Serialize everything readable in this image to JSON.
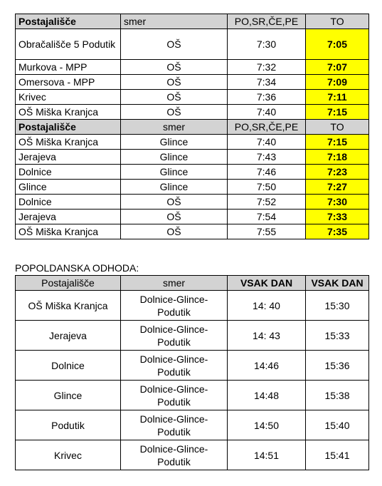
{
  "morning": {
    "header1": {
      "station": "Postajališče",
      "direction": "smer",
      "weekdays": "PO,SR,ČE,PE",
      "tuesday": "TO"
    },
    "block1": [
      {
        "station": "Obračališče 5 Podutik",
        "direction": "OŠ",
        "weekdays": "7:30",
        "tuesday": "7:05"
      },
      {
        "station": "Murkova - MPP",
        "direction": "OŠ",
        "weekdays": "7:32",
        "tuesday": "7:07"
      },
      {
        "station": "Omersova - MPP",
        "direction": "OŠ",
        "weekdays": "7:34",
        "tuesday": "7:09"
      },
      {
        "station": "Krivec",
        "direction": "OŠ",
        "weekdays": "7:36",
        "tuesday": "7:11"
      },
      {
        "station": "OŠ Miška Kranjca",
        "direction": "OŠ",
        "weekdays": "7:40",
        "tuesday": "7:15"
      }
    ],
    "header2": {
      "station": "Postajališče",
      "direction": "smer",
      "weekdays": "PO,SR,ČE,PE",
      "tuesday": "TO"
    },
    "block2": [
      {
        "station": "OŠ Miška Kranjca",
        "direction": "Glince",
        "weekdays": "7:40",
        "tuesday": "7:15"
      },
      {
        "station": "Jerajeva",
        "direction": "Glince",
        "weekdays": "7:43",
        "tuesday": "7:18"
      },
      {
        "station": "Dolnice",
        "direction": "Glince",
        "weekdays": "7:46",
        "tuesday": "7:23"
      },
      {
        "station": "Glince",
        "direction": "Glince",
        "weekdays": "7:50",
        "tuesday": "7:27"
      },
      {
        "station": "Dolnice",
        "direction": "OŠ",
        "weekdays": "7:52",
        "tuesday": "7:30"
      },
      {
        "station": "Jerajeva",
        "direction": "OŠ",
        "weekdays": "7:54",
        "tuesday": "7:33"
      },
      {
        "station": "OŠ Miška Kranjca",
        "direction": "OŠ",
        "weekdays": "7:55",
        "tuesday": "7:35"
      }
    ]
  },
  "afternoon": {
    "title": "POPOLDANSKA ODHODA:",
    "header": {
      "station": "Postajališče",
      "direction": "smer",
      "col1": "VSAK DAN",
      "col2": "VSAK DAN"
    },
    "rows": [
      {
        "station": "OŠ Miška Kranjca",
        "direction": "Dolnice-Glince-Podutik",
        "col1": "14: 40",
        "col2": "15:30"
      },
      {
        "station": "Jerajeva",
        "direction": "Dolnice-Glince-Podutik",
        "col1": "14: 43",
        "col2": "15:33"
      },
      {
        "station": "Dolnice",
        "direction": "Dolnice-Glince-Podutik",
        "col1": "14:46",
        "col2": "15:36"
      },
      {
        "station": "Glince",
        "direction": "Dolnice-Glince-Podutik",
        "col1": "14:48",
        "col2": "15:38"
      },
      {
        "station": "Podutik",
        "direction": "Dolnice-Glince-Podutik",
        "col1": "14:50",
        "col2": "15:40"
      },
      {
        "station": "Krivec",
        "direction": "Dolnice-Glince-Podutik",
        "col1": "14:51",
        "col2": "15:41"
      }
    ]
  }
}
